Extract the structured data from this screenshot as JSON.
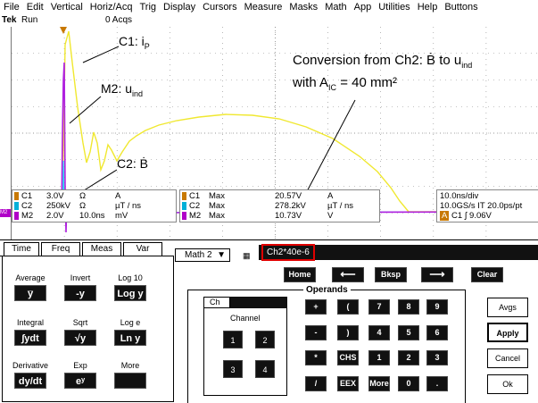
{
  "menu": {
    "items": [
      {
        "label": "File",
        "u": "F"
      },
      {
        "label": "Edit",
        "u": "E"
      },
      {
        "label": "Vertical",
        "u": "V"
      },
      {
        "label": "Horiz/Acq",
        "u": "H"
      },
      {
        "label": "Trig",
        "u": "T"
      },
      {
        "label": "Display",
        "u": "D"
      },
      {
        "label": "Cursors",
        "u": "C"
      },
      {
        "label": "Measure",
        "u": "M"
      },
      {
        "label": "Masks",
        "u": "a"
      },
      {
        "label": "Math",
        "u": "M"
      },
      {
        "label": "App",
        "u": "A"
      },
      {
        "label": "Utilities",
        "u": "U"
      },
      {
        "label": "Help",
        "u": "H"
      },
      {
        "label": "Buttons",
        "u": "B"
      }
    ]
  },
  "status": {
    "brand": "Tek",
    "run": "Run",
    "acqs": "0 Acqs"
  },
  "annotations": {
    "c1_main": "C1: i",
    "c1_sub": "P",
    "m2_main": "M2: u",
    "m2_sub": "ind",
    "c2_text": "C2: Ḃ",
    "conv_line1_main": "Conversion from Ch2: Ḃ to u",
    "conv_line1_sub": "ind",
    "conv_line2_a": "with A",
    "conv_line2_sub": "IC",
    "conv_line2_b": " = 40 mm²"
  },
  "channel_readout": {
    "rows": [
      {
        "ch": "C1",
        "scale": "3.0V",
        "unit1": "Ω",
        "unit2": "A",
        "color": "#c87800"
      },
      {
        "ch": "C2",
        "scale": "250kV",
        "unit1": "Ω",
        "unit2": "µT / ns",
        "color": "#00b0d8"
      },
      {
        "ch": "M2",
        "scale": "2.0V",
        "unit1": "10.0ns",
        "unit2": "mV",
        "color": "#b000c8"
      }
    ]
  },
  "measure_readout": {
    "rows": [
      {
        "ch": "C1",
        "label": "Max",
        "value": "20.57V",
        "unit": "A",
        "color": "#c87800"
      },
      {
        "ch": "C2",
        "label": "Max",
        "value": "278.2kV",
        "unit": "µT / ns",
        "color": "#00b0d8"
      },
      {
        "ch": "M2",
        "label": "Max",
        "value": "10.73V",
        "unit": "V",
        "color": "#b000c8"
      }
    ]
  },
  "timebase": {
    "line1": "10.0ns/div",
    "line2": "10.0GS/s  IT 20.0ps/pt",
    "trig_badge": "A",
    "trig_ch": "C1",
    "trig_level": "9.06V"
  },
  "marker_left": "M2",
  "tabs": {
    "time": "Time",
    "freq": "Freq",
    "meas": "Meas",
    "var": "Var"
  },
  "functions": [
    {
      "label": "Average",
      "btn": "y̅"
    },
    {
      "label": "Invert",
      "btn": "-y"
    },
    {
      "label": "Log 10",
      "btn": "Log y"
    },
    {
      "label": "Integral",
      "btn": "∫ydt"
    },
    {
      "label": "Sqrt",
      "btn": "√y"
    },
    {
      "label": "Log e",
      "btn": "Ln y"
    },
    {
      "label": "Derivative",
      "btn": "dy/dt"
    },
    {
      "label": "Exp",
      "btn": "eʸ"
    },
    {
      "label": "More",
      "btn": ""
    }
  ],
  "math_select": {
    "value": "Math 2",
    "arrow": "▼"
  },
  "expression": "Ch2*40e-6",
  "edit_keys": {
    "home": "Home",
    "left": "⟵",
    "bksp": "Bksp",
    "right": "⟶",
    "clear": "Clear"
  },
  "operands_label": "Operands",
  "channel_tab": "Ch",
  "channel_label": "Channel",
  "channels": [
    "1",
    "2",
    "3",
    "4"
  ],
  "keypad": [
    [
      "+",
      "(",
      "7",
      "8",
      "9"
    ],
    [
      "-",
      ")",
      "4",
      "5",
      "6"
    ],
    [
      "*",
      "CHS",
      "1",
      "2",
      "3"
    ],
    [
      "/",
      "EEX",
      "More",
      "0",
      "."
    ]
  ],
  "side_buttons": {
    "avgs": "Avgs",
    "apply": "Apply",
    "cancel": "Cancel",
    "ok": "Ok"
  },
  "colors": {
    "ch1": "#f0e830",
    "ch2": "#30d8f0",
    "math2": "#b020e0",
    "grid": "#888888",
    "highlight": "#e00000"
  }
}
